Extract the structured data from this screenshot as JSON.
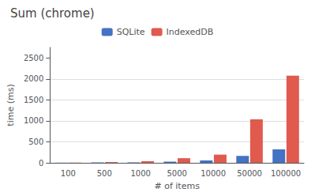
{
  "chart_data": {
    "type": "bar",
    "title": "Sum (chrome)",
    "xlabel": "# of items",
    "ylabel": "time (ms)",
    "categories": [
      "100",
      "500",
      "1000",
      "5000",
      "10000",
      "50000",
      "100000"
    ],
    "series": [
      {
        "name": "SQLite",
        "color": "#4472c4",
        "values": [
          3,
          8,
          10,
          28,
          55,
          165,
          320
        ]
      },
      {
        "name": "IndexedDB",
        "color": "#e05a4e",
        "values": [
          5,
          18,
          38,
          110,
          195,
          1035,
          2075
        ]
      }
    ],
    "ylim": [
      0,
      2750
    ],
    "yticks": [
      0,
      500,
      1000,
      1500,
      2000,
      2500
    ],
    "grid": true,
    "legend": "top"
  }
}
